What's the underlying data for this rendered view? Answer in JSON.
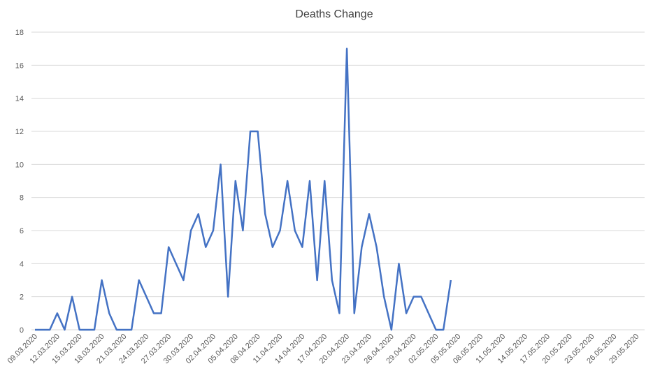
{
  "chart_data": {
    "type": "line",
    "title": "Deaths Change",
    "categories": [
      "09.03.2020",
      null,
      null,
      "12.03.2020",
      null,
      null,
      "15.03.2020",
      null,
      null,
      "18.03.2020",
      null,
      null,
      "21.03.2020",
      null,
      null,
      "24.03.2020",
      null,
      null,
      "27.03.2020",
      null,
      null,
      "30.03.2020",
      null,
      null,
      "02.04.2020",
      null,
      null,
      "05.04.2020",
      null,
      null,
      "08.04.2020",
      null,
      null,
      "11.04.2020",
      null,
      null,
      "14.04.2020",
      null,
      null,
      "17.04.2020",
      null,
      null,
      "20.04.2020",
      null,
      null,
      "23.04.2020",
      null,
      null,
      "26.04.2020",
      null,
      null,
      "29.04.2020",
      null,
      null,
      "02.05.2020",
      null,
      null,
      "05.05.2020",
      null,
      null,
      "08.05.2020",
      null,
      null,
      "11.05.2020",
      null,
      null,
      "14.05.2020",
      null,
      null,
      "17.05.2020",
      null,
      null,
      "20.05.2020",
      null,
      null,
      "23.05.2020",
      null,
      null,
      "26.05.2020",
      null,
      null,
      "29.05.2020",
      null
    ],
    "series": [
      {
        "name": "Deaths Change",
        "color": "#4472c4",
        "values": [
          0,
          0,
          0,
          1,
          0,
          2,
          0,
          0,
          0,
          3,
          1,
          0,
          0,
          0,
          3,
          2,
          1,
          1,
          5,
          4,
          3,
          6,
          7,
          5,
          6,
          10,
          2,
          9,
          6,
          12,
          12,
          7,
          5,
          6,
          9,
          6,
          5,
          9,
          3,
          9,
          3,
          1,
          17,
          1,
          5,
          7,
          5,
          2,
          0,
          4,
          1,
          2,
          2,
          1,
          0,
          0,
          3,
          null,
          null,
          null,
          null,
          null,
          null,
          null,
          null,
          null,
          null,
          null,
          null,
          null,
          null,
          null,
          null,
          null,
          null,
          null,
          null,
          null,
          null,
          null,
          null,
          null,
          null
        ]
      }
    ],
    "ylim": [
      0,
      18
    ],
    "yticks": [
      0,
      2,
      4,
      6,
      8,
      10,
      12,
      14,
      16,
      18
    ],
    "grid": true
  }
}
